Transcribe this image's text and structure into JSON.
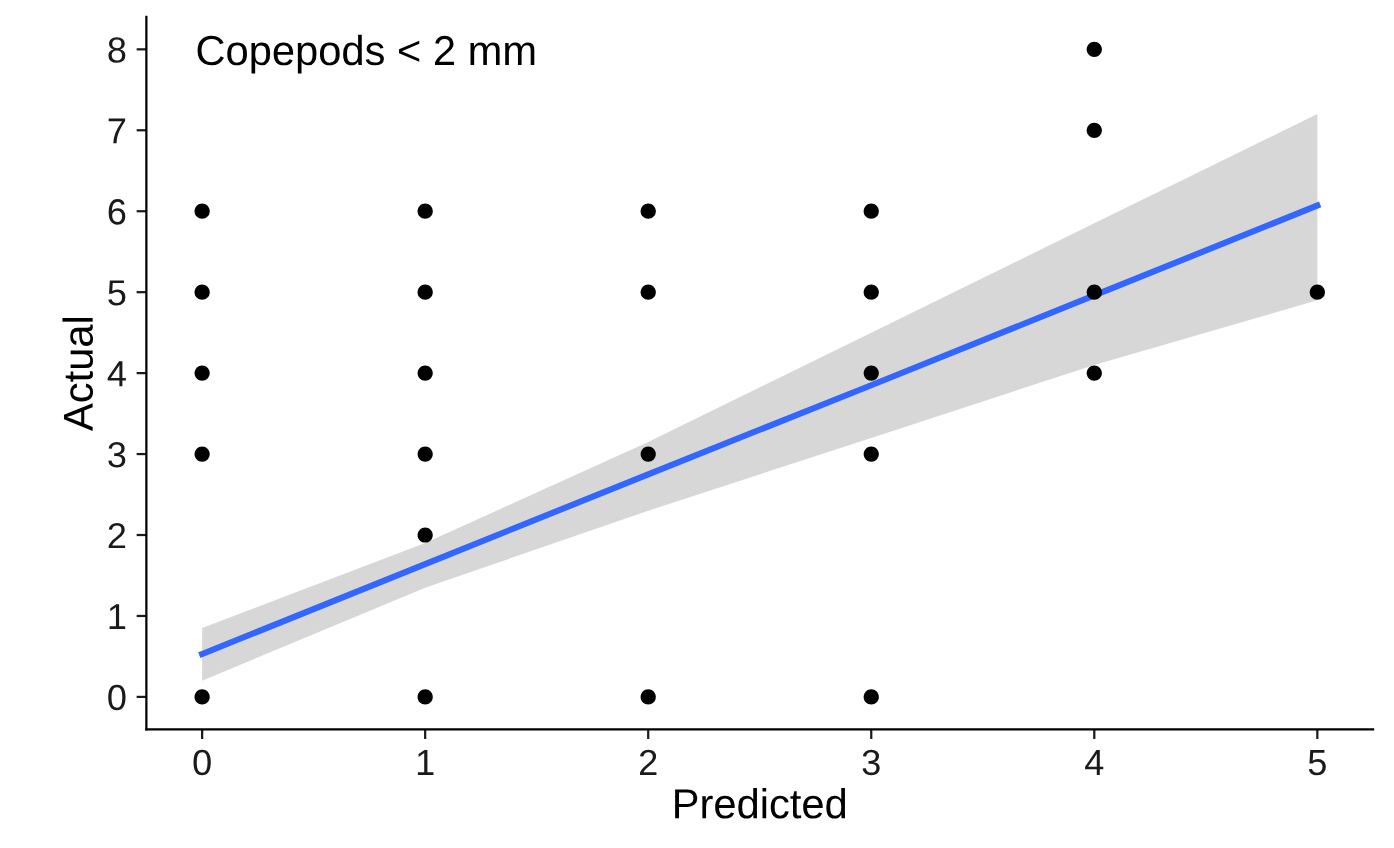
{
  "chart_data": {
    "type": "scatter",
    "xlabel": "Predicted",
    "ylabel": "Actual",
    "annotations": [
      "Copepods < 2 mm"
    ],
    "xlim": [
      -0.25,
      5.25
    ],
    "xticks": [
      0,
      1,
      2,
      3,
      4,
      5
    ],
    "ylim": [
      -0.4,
      8.4
    ],
    "yticks": [
      0,
      1,
      2,
      3,
      4,
      5,
      6,
      7,
      8
    ],
    "grid": false,
    "series": [
      {
        "color": "#000000",
        "marker": "circle",
        "x": [
          0,
          0,
          0,
          0,
          0,
          1,
          1,
          1,
          1,
          1,
          1,
          2,
          2,
          2,
          2,
          3,
          3,
          3,
          3,
          3,
          4,
          4,
          4,
          4,
          5
        ],
        "values": [
          0,
          3,
          4,
          5,
          6,
          0,
          2,
          3,
          4,
          5,
          6,
          0,
          3,
          5,
          6,
          0,
          3,
          4,
          5,
          6,
          4,
          5,
          7,
          8,
          5
        ]
      },
      {
        "type": "line",
        "color": "#3366ff",
        "marker": "none",
        "line_style": "solid",
        "x": [
          0,
          1,
          2,
          3,
          4,
          5
        ],
        "values": [
          0.53,
          1.64,
          2.75,
          3.85,
          4.96,
          6.07
        ],
        "lower": [
          0.2,
          1.35,
          2.3,
          3.2,
          4.1,
          4.9
        ],
        "upper": [
          0.85,
          1.9,
          3.15,
          4.5,
          5.85,
          7.2
        ]
      }
    ]
  }
}
